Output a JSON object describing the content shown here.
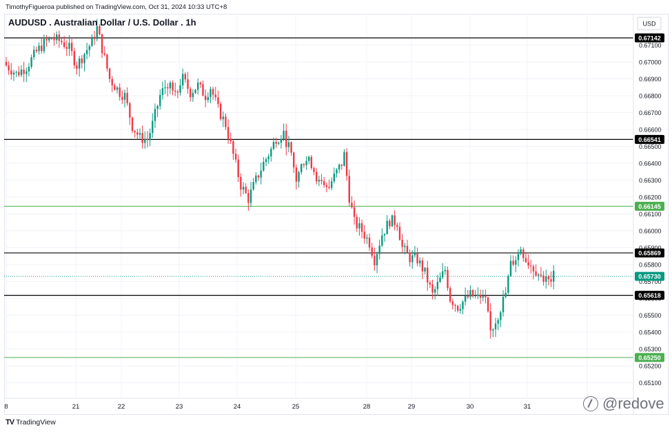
{
  "header": {
    "attribution": "TimothyFigueroa published on TradingView.com, Oct 31, 2024 10:33 UTC+8",
    "title": "AUDUSD . Australian Dollar / U.S. Dollar . 1h"
  },
  "footer": {
    "brand": "TradingView",
    "watermark": "@redove"
  },
  "colors": {
    "up": "#089981",
    "down": "#f23645",
    "grid": "#f0f3fa",
    "level_black": "#000000",
    "level_green": "#4caf50",
    "price_line": "#089981"
  },
  "chart_data": {
    "type": "candlestick",
    "symbol": "AUDUSD",
    "title": "AUDUSD . Australian Dollar / U.S. Dollar . 1h",
    "currency_label": "USD",
    "ylim": [
      0.6501,
      0.67232
    ],
    "y_ticks": [
      "0.67100",
      "0.67000",
      "0.66900",
      "0.66800",
      "0.66700",
      "0.66600",
      "0.66500",
      "0.66400",
      "0.66300",
      "0.66200",
      "0.66100",
      "0.66000",
      "0.65900",
      "0.65800",
      "0.65700",
      "0.65600",
      "0.65500",
      "0.65400",
      "0.65300",
      "0.65200",
      "0.65100"
    ],
    "x_ticks": [
      "8",
      "21",
      "22",
      "23",
      "24",
      "25",
      "28",
      "29",
      "30",
      "31"
    ],
    "horizontal_levels": [
      {
        "value": 0.67142,
        "label": "0.67142",
        "kind": "black"
      },
      {
        "value": 0.66541,
        "label": "0.66541",
        "kind": "black"
      },
      {
        "value": 0.66145,
        "label": "0.66145",
        "kind": "green"
      },
      {
        "value": 0.65869,
        "label": "0.65869",
        "kind": "black"
      },
      {
        "value": 0.65618,
        "label": "0.65618",
        "kind": "black"
      },
      {
        "value": 0.6525,
        "label": "0.65250",
        "kind": "green"
      }
    ],
    "last_price": {
      "value": 0.6573,
      "label": "0.65730"
    },
    "close_path": [
      [
        0,
        0.6698
      ],
      [
        4,
        0.6693
      ],
      [
        8,
        0.6697
      ],
      [
        12,
        0.6706
      ],
      [
        15,
        0.6711
      ],
      [
        18,
        0.6714
      ],
      [
        22,
        0.6712
      ],
      [
        25,
        0.6708
      ],
      [
        28,
        0.6698
      ],
      [
        31,
        0.6705
      ],
      [
        34,
        0.6712
      ],
      [
        36,
        0.672
      ],
      [
        38,
        0.6708
      ],
      [
        41,
        0.669
      ],
      [
        45,
        0.6682
      ],
      [
        47,
        0.668
      ],
      [
        50,
        0.6662
      ],
      [
        53,
        0.6655
      ],
      [
        56,
        0.6654
      ],
      [
        58,
        0.6663
      ],
      [
        61,
        0.668
      ],
      [
        64,
        0.6688
      ],
      [
        67,
        0.6684
      ],
      [
        70,
        0.669
      ],
      [
        73,
        0.6682
      ],
      [
        76,
        0.6686
      ],
      [
        79,
        0.668
      ],
      [
        81,
        0.6685
      ],
      [
        84,
        0.6672
      ],
      [
        87,
        0.6663
      ],
      [
        90,
        0.6645
      ],
      [
        93,
        0.6627
      ],
      [
        96,
        0.6619
      ],
      [
        99,
        0.663
      ],
      [
        102,
        0.664
      ],
      [
        105,
        0.6648
      ],
      [
        107,
        0.6655
      ],
      [
        110,
        0.6656
      ],
      [
        112,
        0.665
      ],
      [
        115,
        0.663
      ],
      [
        118,
        0.6642
      ],
      [
        121,
        0.664
      ],
      [
        124,
        0.6628
      ],
      [
        127,
        0.6624
      ],
      [
        130,
        0.6632
      ],
      [
        133,
        0.664
      ],
      [
        134,
        0.6645
      ],
      [
        136,
        0.662
      ],
      [
        138,
        0.6605
      ],
      [
        141,
        0.66
      ],
      [
        144,
        0.6593
      ],
      [
        146,
        0.6583
      ],
      [
        149,
        0.6598
      ],
      [
        152,
        0.6606
      ],
      [
        155,
        0.6605
      ],
      [
        157,
        0.659
      ],
      [
        160,
        0.6584
      ],
      [
        163,
        0.6583
      ],
      [
        166,
        0.6575
      ],
      [
        169,
        0.6562
      ],
      [
        172,
        0.6571
      ],
      [
        174,
        0.6577
      ],
      [
        176,
        0.656
      ],
      [
        179,
        0.6555
      ],
      [
        181,
        0.6558
      ],
      [
        184,
        0.6562
      ],
      [
        187,
        0.656
      ],
      [
        190,
        0.6558
      ],
      [
        192,
        0.654
      ],
      [
        195,
        0.655
      ],
      [
        198,
        0.6563
      ],
      [
        200,
        0.658
      ],
      [
        203,
        0.6586
      ],
      [
        204,
        0.659
      ],
      [
        206,
        0.6583
      ],
      [
        209,
        0.6578
      ],
      [
        212,
        0.6573
      ],
      [
        215,
        0.657
      ],
      [
        217,
        0.6573
      ]
    ]
  }
}
